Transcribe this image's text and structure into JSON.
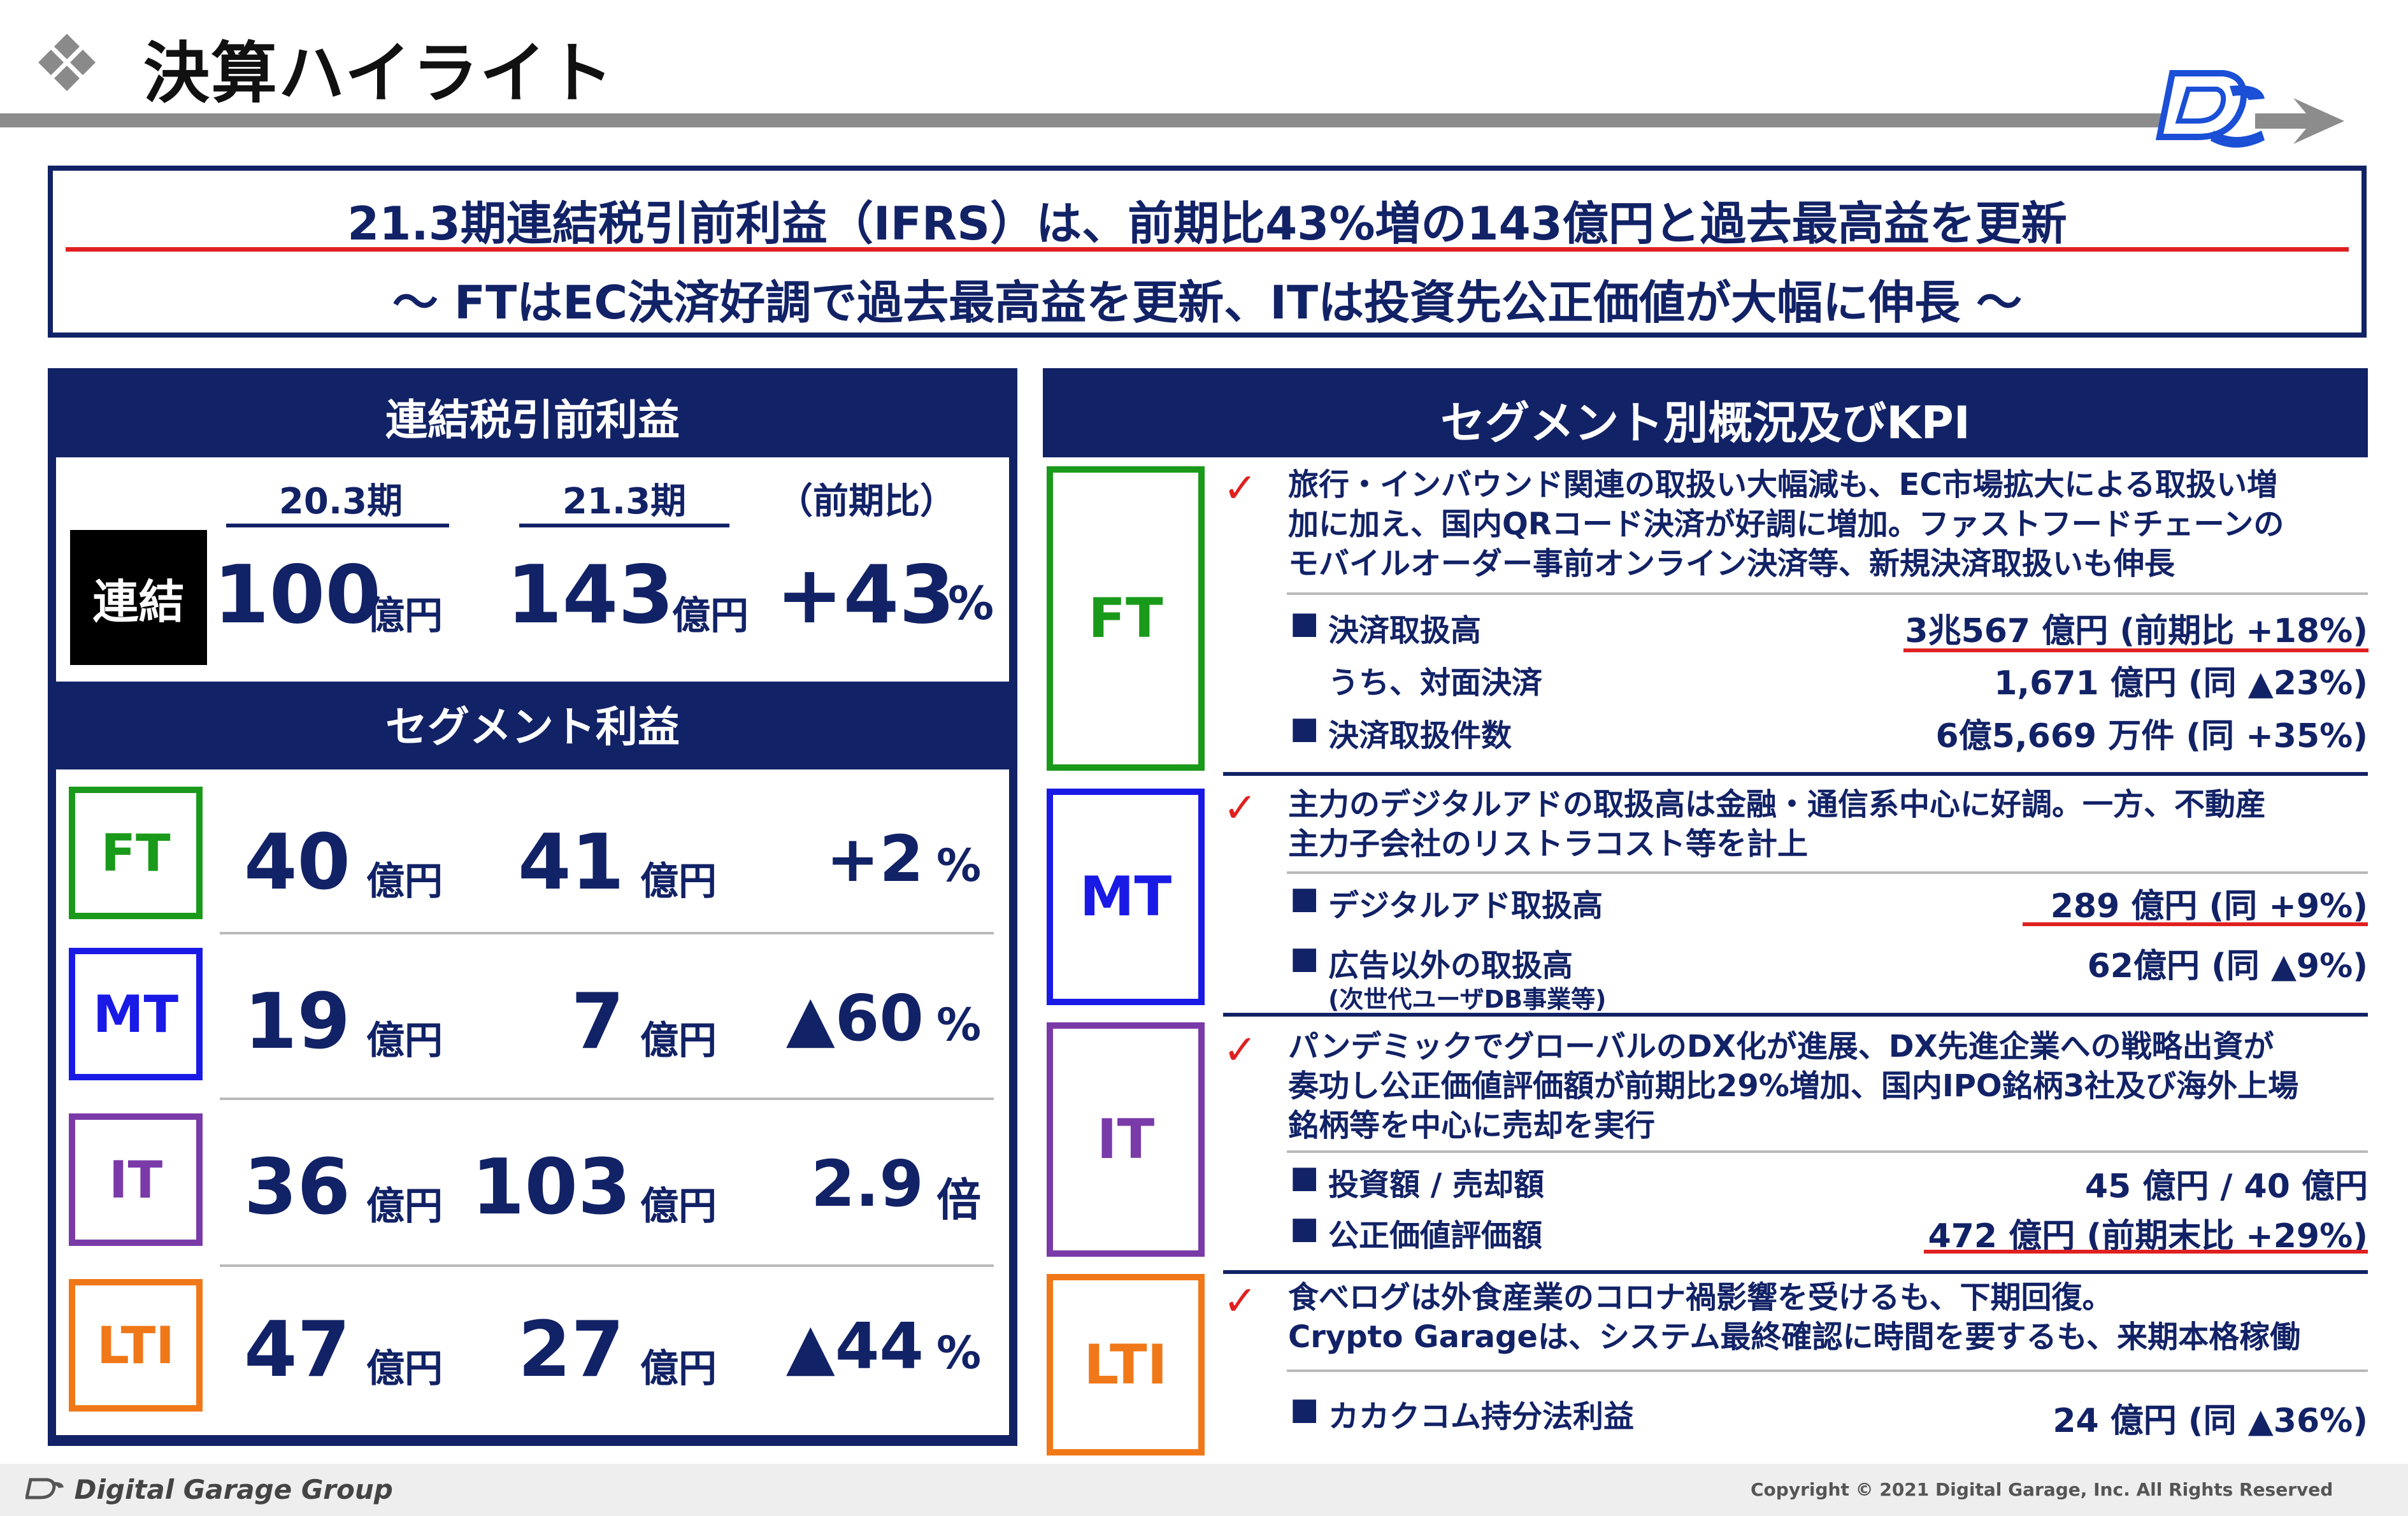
{
  "header": {
    "title": "決算ハイライト",
    "diamond_icon": "diamond-cluster-icon",
    "logo_icon": "dg-logo-icon"
  },
  "headline": {
    "main": "21.3期連結税引前利益（IFRS）は、前期比43%増の143億円と過去最高益を更新",
    "sub": "～ FTはEC決済好調で過去最高益を更新、ITは投資先公正価値が大幅に伸長 ～"
  },
  "left_panel": {
    "title": "連結税引前利益",
    "columns": [
      "20.3期",
      "21.3期",
      "（前期比）"
    ],
    "consolidated": {
      "label": "連結",
      "prev": "100",
      "prev_unit": "億円",
      "curr": "143",
      "curr_unit": "億円",
      "change": "+43",
      "change_unit": "%"
    },
    "segment_title": "セグメント利益",
    "segments": [
      {
        "name": "FT",
        "prev": "40",
        "prev_unit": "億円",
        "curr": "41",
        "curr_unit": "億円",
        "change": "+2",
        "change_unit": "%",
        "color": "#1a9a1a"
      },
      {
        "name": "MT",
        "prev": "19",
        "prev_unit": "億円",
        "curr": "7",
        "curr_unit": "億円",
        "change": "▲60",
        "change_unit": "%",
        "color": "#1a1ae6"
      },
      {
        "name": "IT",
        "prev": "36",
        "prev_unit": "億円",
        "curr": "103",
        "curr_unit": "億円",
        "change": "2.9",
        "change_unit": "倍",
        "color": "#7a3aa8"
      },
      {
        "name": "LTI",
        "prev": "47",
        "prev_unit": "億円",
        "curr": "27",
        "curr_unit": "億円",
        "change": "▲44",
        "change_unit": "%",
        "color": "#f07818"
      }
    ]
  },
  "right_panel": {
    "title": "セグメント別概況及びKPI",
    "segments": [
      {
        "name": "FT",
        "color": "#1a9a1a",
        "desc": [
          "旅行・インバウンド関連の取扱い大幅減も、EC市場拡大による取扱い増",
          "加に加え、国内QRコード決済が好調に増加。ファストフードチェーンの",
          "モバイルオーダー事前オンライン決済等、新規決済取扱いも伸長"
        ],
        "kpis": [
          {
            "bullet": "■",
            "label": "決済取扱高",
            "value": "3兆567 億円 (前期比 +18%)"
          },
          {
            "bullet": "",
            "label": "うち、対面決済",
            "value": "1,671 億円 (同 ▲23%)"
          },
          {
            "bullet": "■",
            "label": "決済取扱件数",
            "value": "6億5,669 万件 (同 +35%)"
          }
        ]
      },
      {
        "name": "MT",
        "color": "#1a1ae6",
        "desc": [
          "主力のデジタルアドの取扱高は金融・通信系中心に好調。一方、不動産",
          "主力子会社のリストラコスト等を計上"
        ],
        "kpis": [
          {
            "bullet": "■",
            "label": "デジタルアド取扱高",
            "value": "289 億円 (同 +9%)"
          },
          {
            "bullet": "■",
            "label": "広告以外の取扱高",
            "value": "62億円 (同 ▲9%)",
            "sub": "(次世代ユーザDB事業等)"
          }
        ]
      },
      {
        "name": "IT",
        "color": "#7a3aa8",
        "desc": [
          "パンデミックでグローバルのDX化が進展、DX先進企業への戦略出資が",
          "奏功し公正価値評価額が前期比29%増加、国内IPO銘柄3社及び海外上場",
          "銘柄等を中心に売却を実行"
        ],
        "kpis": [
          {
            "bullet": "■",
            "label": "投資額 / 売却額",
            "value": "45 億円 / 40 億円"
          },
          {
            "bullet": "■",
            "label": "公正価値評価額",
            "value": "472 億円 (前期末比 +29%)"
          }
        ]
      },
      {
        "name": "LTI",
        "color": "#f07818",
        "desc": [
          "食べログは外食産業のコロナ禍影響を受けるも、下期回復。",
          "Crypto Garageは、システム最終確認に時間を要するも、来期本格稼働"
        ],
        "kpis": [
          {
            "bullet": "■",
            "label": "カカクコム持分法利益",
            "value": "24 億円 (同 ▲36%)"
          }
        ]
      }
    ]
  },
  "footer": {
    "brand": "Digital Garage Group",
    "copyright": "Copyright © 2021 Digital Garage, Inc. All Rights Reserved"
  },
  "colors": {
    "navy": "#122266",
    "red": "#e02020",
    "ft": "#1a9a1a",
    "mt": "#1a1ae6",
    "it": "#7a3aa8",
    "lti": "#f07818"
  }
}
